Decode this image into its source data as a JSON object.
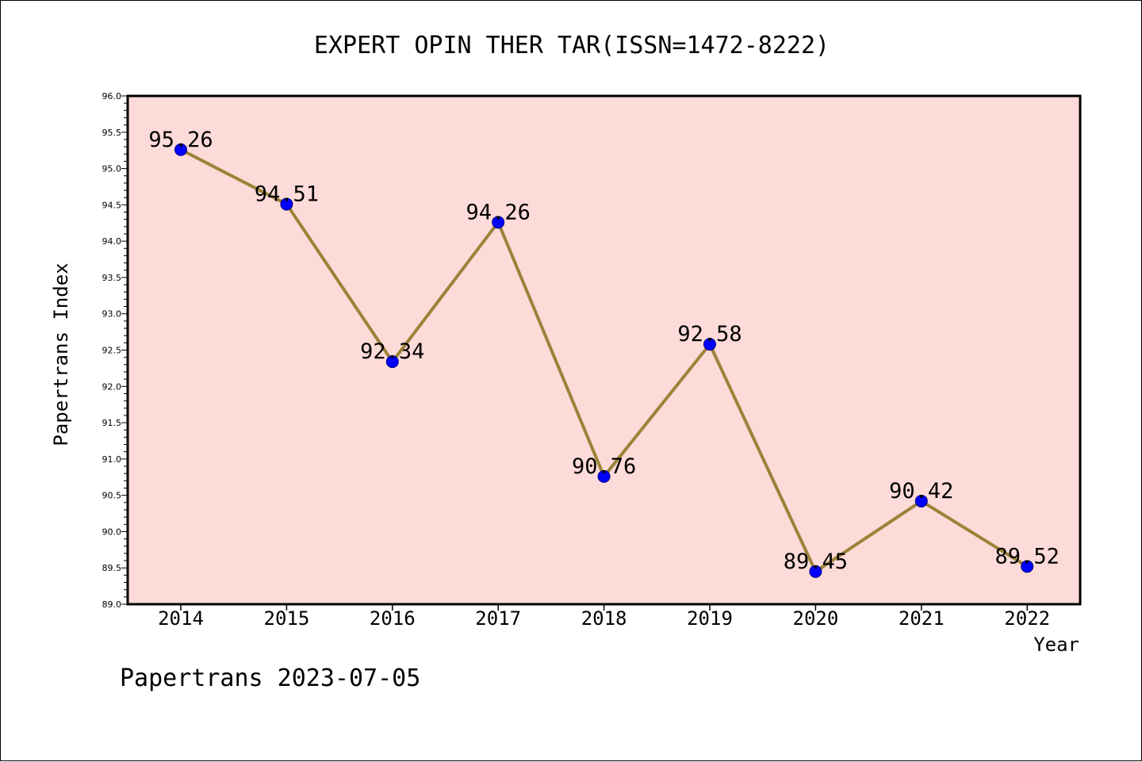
{
  "footer": "Papertrans 2023-07-05",
  "colors": {
    "plot_background": "#fddbd9",
    "line": "#9b8338",
    "marker": "#0000ff",
    "axis": "#000000"
  },
  "chart_data": {
    "type": "line",
    "title": "EXPERT OPIN THER TAR(ISSN=1472-8222)",
    "xlabel": "Year",
    "ylabel": "Papertrans Index",
    "categories": [
      "2014",
      "2015",
      "2016",
      "2017",
      "2018",
      "2019",
      "2020",
      "2021",
      "2022"
    ],
    "values": [
      95.26,
      94.51,
      92.34,
      94.26,
      90.76,
      92.58,
      89.45,
      90.42,
      89.52
    ],
    "data_labels": [
      "95.26",
      "94.51",
      "92.34",
      "94.26",
      "90.76",
      "92.58",
      "89.45",
      "90.42",
      "89.52"
    ],
    "ylim": [
      89.0,
      96.0
    ],
    "yticks": [
      "89.0",
      "89.5",
      "90.0",
      "90.5",
      "91.0",
      "91.5",
      "92.0",
      "92.5",
      "93.0",
      "93.5",
      "94.0",
      "94.5",
      "95.0",
      "95.5",
      "96.0"
    ],
    "grid": false,
    "legend": "none"
  }
}
